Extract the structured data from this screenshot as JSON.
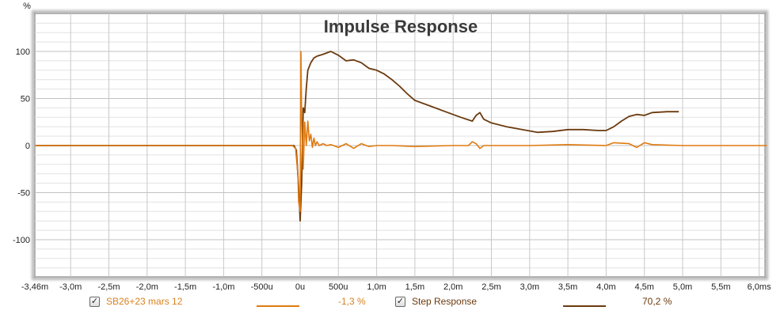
{
  "chart_data": {
    "type": "line",
    "title": "Impulse Response",
    "ylabel": "%",
    "xlabel": "",
    "ylim": [
      -139,
      140
    ],
    "xlim_ms": [
      -3.46,
      6.1
    ],
    "grid": true,
    "y_ticks": [
      "100",
      "50",
      "0",
      "-50",
      "-100"
    ],
    "y_tick_values": [
      100,
      50,
      0,
      -50,
      -100
    ],
    "x_ticks": [
      "-3,46m",
      "-3,0m",
      "-2,5m",
      "-2,0m",
      "-1,5m",
      "-1,0m",
      "-500u",
      "0u",
      "500u",
      "1,0m",
      "1,5m",
      "2,0m",
      "2,5m",
      "3,0m",
      "3,5m",
      "4,0m",
      "4,5m",
      "5,0m",
      "5,5m",
      "6,0ms"
    ],
    "x_tick_values_ms": [
      -3.46,
      -3.0,
      -2.5,
      -2.0,
      -1.5,
      -1.0,
      -0.5,
      0,
      0.5,
      1.0,
      1.5,
      2.0,
      2.5,
      3.0,
      3.5,
      4.0,
      4.5,
      5.0,
      5.5,
      6.0
    ],
    "legend_position": "bottom",
    "series": [
      {
        "name": "SB26+23 mars 12",
        "color": "#e07a10",
        "value_label": "-1,3 %",
        "x_ms": [
          -3.46,
          -0.1,
          -0.06,
          -0.03,
          -0.02,
          0.0,
          0.01,
          0.02,
          0.04,
          0.06,
          0.08,
          0.1,
          0.12,
          0.14,
          0.16,
          0.18,
          0.2,
          0.22,
          0.25,
          0.3,
          0.35,
          0.4,
          0.5,
          0.6,
          0.7,
          0.8,
          0.9,
          1.0,
          1.2,
          1.5,
          2.0,
          2.2,
          2.25,
          2.3,
          2.35,
          2.4,
          2.5,
          3.0,
          3.5,
          4.0,
          4.1,
          4.3,
          4.4,
          4.5,
          4.6,
          5.0,
          5.5,
          6.1
        ],
        "y": [
          0,
          0,
          -3,
          -30,
          -60,
          -70,
          100,
          30,
          -25,
          25,
          0,
          26,
          5,
          12,
          -2,
          8,
          0,
          4,
          0,
          2,
          0,
          1,
          -2,
          2,
          -3,
          2,
          -1,
          0,
          0,
          -1,
          0,
          0,
          4,
          2,
          -3,
          0,
          0,
          0,
          1,
          0,
          3,
          2,
          -2,
          3,
          1,
          0,
          0,
          0
        ]
      },
      {
        "name": "Step Response",
        "color": "#6b3a0e",
        "value_label": "70,2 %",
        "x_ms": [
          -3.46,
          -0.08,
          -0.05,
          -0.03,
          -0.01,
          0.0,
          0.02,
          0.04,
          0.06,
          0.08,
          0.1,
          0.14,
          0.18,
          0.22,
          0.3,
          0.4,
          0.5,
          0.6,
          0.7,
          0.8,
          0.9,
          1.0,
          1.1,
          1.2,
          1.3,
          1.4,
          1.5,
          1.7,
          1.9,
          2.1,
          2.25,
          2.3,
          2.35,
          2.4,
          2.5,
          2.7,
          2.9,
          3.1,
          3.3,
          3.5,
          3.7,
          3.9,
          4.0,
          4.1,
          4.2,
          4.3,
          4.4,
          4.5,
          4.6,
          4.8,
          4.95
        ],
        "y": [
          0,
          0,
          -5,
          -30,
          -60,
          -80,
          -40,
          40,
          35,
          60,
          80,
          88,
          93,
          95,
          97,
          100,
          96,
          90,
          91,
          88,
          82,
          80,
          76,
          70,
          63,
          55,
          48,
          42,
          36,
          30,
          26,
          32,
          35,
          28,
          24,
          20,
          17,
          14,
          15,
          17,
          17,
          16,
          16,
          20,
          26,
          31,
          33,
          32,
          35,
          36,
          36
        ]
      }
    ]
  },
  "legend": {
    "items": [
      {
        "checked": true,
        "check_glyph": "✓",
        "label": "SB26+23 mars 12",
        "value": "-1,3 %",
        "color": "#e07a10"
      },
      {
        "checked": true,
        "check_glyph": "✓",
        "label": "Step Response",
        "value": "70,2 %",
        "color": "#6b3a0e"
      }
    ]
  }
}
